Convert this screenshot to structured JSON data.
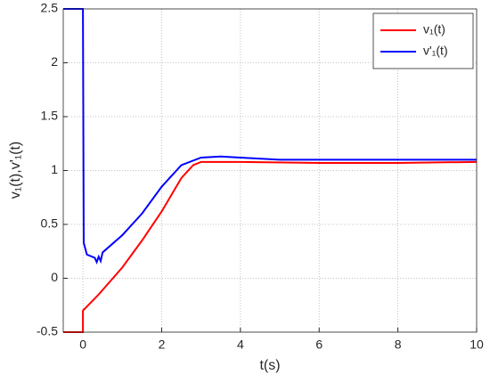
{
  "chart_data": {
    "type": "line",
    "xlabel": "t(s)",
    "ylabel": "v₁(t),v'₁(t)",
    "xlim": [
      -0.5,
      10
    ],
    "ylim": [
      -0.5,
      2.5
    ],
    "xticks": [
      0,
      2,
      4,
      6,
      8,
      10
    ],
    "yticks": [
      -0.5,
      0,
      0.5,
      1,
      1.5,
      2,
      2.5
    ],
    "grid": true,
    "legend": "upper right",
    "series": [
      {
        "name": "v₁(t)",
        "color": "#ff0000",
        "x": [
          -0.5,
          0,
          0,
          0.4,
          1,
          1.5,
          2,
          2.5,
          2.8,
          3,
          3.5,
          4,
          6,
          8,
          10
        ],
        "values": [
          -0.5,
          -0.5,
          -0.3,
          -0.15,
          0.1,
          0.35,
          0.62,
          0.93,
          1.05,
          1.08,
          1.08,
          1.08,
          1.07,
          1.07,
          1.08
        ]
      },
      {
        "name": "v'₁(t)",
        "color": "#0000ff",
        "x": [
          -0.5,
          0,
          0.02,
          0.1,
          0.3,
          0.35,
          0.4,
          0.45,
          0.5,
          1,
          1.5,
          2,
          2.5,
          3,
          3.5,
          4,
          5,
          6,
          8,
          10
        ],
        "values": [
          2.5,
          2.5,
          0.33,
          0.22,
          0.19,
          0.15,
          0.2,
          0.16,
          0.24,
          0.4,
          0.6,
          0.85,
          1.05,
          1.12,
          1.13,
          1.12,
          1.1,
          1.1,
          1.1,
          1.1
        ]
      }
    ]
  }
}
